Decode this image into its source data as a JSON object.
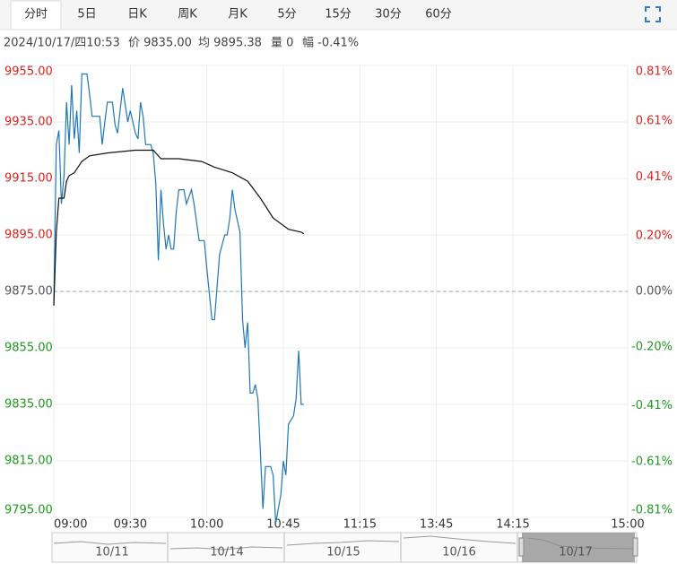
{
  "tabs": [
    "分时",
    "5日",
    "日K",
    "周K",
    "月K",
    "5分",
    "15分",
    "30分",
    "60分"
  ],
  "selected_tab": 0,
  "info": [
    "2024/10/17/四10:53",
    "价 9835.00",
    "均 9895.38",
    "量 0",
    "幅 -0.41%"
  ],
  "chart_data": {
    "type": "line",
    "ylim": [
      9795,
      9955
    ],
    "yticks": [
      {
        "value": 9955,
        "label": "9955.00"
      },
      {
        "value": 9935,
        "label": "9935.00"
      },
      {
        "value": 9915,
        "label": "9915.00"
      },
      {
        "value": 9895,
        "label": "9895.00"
      },
      {
        "value": 9875,
        "label": "9875.00"
      },
      {
        "value": 9855,
        "label": "9855.00"
      },
      {
        "value": 9835,
        "label": "9835.00"
      },
      {
        "value": 9815,
        "label": "9815.00"
      },
      {
        "value": 9795,
        "label": "9795.00"
      }
    ],
    "y2lim": [
      -0.81,
      0.81
    ],
    "y2ticks": [
      {
        "value": 0.81,
        "label": "0.81%"
      },
      {
        "value": 0.61,
        "label": "0.61%"
      },
      {
        "value": 0.41,
        "label": "0.41%"
      },
      {
        "value": 0.2,
        "label": "0.20%"
      },
      {
        "value": 0,
        "label": "0.00%"
      },
      {
        "value": -0.2,
        "label": "-0.20%"
      },
      {
        "value": -0.41,
        "label": "-0.41%"
      },
      {
        "value": -0.61,
        "label": "-0.61%"
      },
      {
        "value": -0.81,
        "label": "-0.81%"
      }
    ],
    "xlim": [
      0,
      225
    ],
    "xticks": [
      {
        "value": 0,
        "label": "09:00"
      },
      {
        "value": 30,
        "label": "09:30"
      },
      {
        "value": 60,
        "label": "10:00"
      },
      {
        "value": 90,
        "label": "10:45"
      },
      {
        "value": 120,
        "label": "11:15"
      },
      {
        "value": 150,
        "label": "13:45"
      },
      {
        "value": 180,
        "label": "14:15"
      },
      {
        "value": 225,
        "label": "15:00"
      }
    ],
    "base": 9875,
    "up_color": "#e0201c",
    "down_color": "#1e9a1e",
    "flat_color": "#555555",
    "grid": true,
    "series": [
      {
        "color": "#1f78b4",
        "x": [
          "09:00",
          "09:01",
          "09:02",
          "09:03",
          "09:04",
          "09:05",
          "09:06",
          "09:07",
          "09:08",
          "09:09",
          "09:10",
          "09:11",
          "09:13",
          "09:14",
          "09:15",
          "09:18",
          "09:19",
          "09:20",
          "09:21",
          "09:23",
          "09:24",
          "09:25",
          "09:27",
          "09:29",
          "09:30",
          "09:32",
          "09:33",
          "09:34",
          "09:35",
          "09:36",
          "09:38",
          "09:39",
          "09:40",
          "09:41",
          "09:42",
          "09:43",
          "09:44",
          "09:45",
          "09:46",
          "09:47",
          "09:48",
          "09:49",
          "09:51",
          "09:52",
          "09:54",
          "09:55",
          "09:57",
          "09:59",
          "10:00",
          "10:02",
          "10:03",
          "10:05",
          "10:07",
          "10:08",
          "10:09",
          "10:10",
          "10:11",
          "10:13",
          "10:14",
          "10:30",
          "10:31",
          "10:32",
          "10:33",
          "10:34",
          "10:35",
          "10:36",
          "10:37",
          "10:38",
          "10:40",
          "10:41",
          "10:42",
          "10:44",
          "10:45",
          "10:46",
          "10:47",
          "10:49",
          "10:50",
          "10:51",
          "10:52",
          "10:53"
        ],
        "values": [
          9870,
          9927,
          9932,
          9906,
          9916,
          9942,
          9927,
          9948,
          9929,
          9939,
          9924,
          9952,
          9952,
          9945,
          9937,
          9937,
          9927,
          9935,
          9942,
          9942,
          9934,
          9931,
          9947,
          9935,
          9939,
          9931,
          9929,
          9942,
          9937,
          9927,
          9927,
          9924,
          9913,
          9886,
          9911,
          9899,
          9890,
          9895,
          9890,
          9890,
          9903,
          9911,
          9911,
          9906,
          9911,
          9906,
          9893,
          9893,
          9883,
          9865,
          9865,
          9888,
          9895,
          9895,
          9901,
          9911,
          9904,
          9896,
          9865,
          9855,
          9864,
          9839,
          9839,
          9842,
          9837,
          9818,
          9798,
          9813,
          9813,
          9810,
          9793,
          9803,
          9815,
          9810,
          9828,
          9831,
          9837,
          9854,
          9835,
          9835
        ]
      },
      {
        "color": "#111111",
        "x": [
          "09:00",
          "09:01",
          "09:02",
          "09:04",
          "09:05",
          "09:06",
          "09:08",
          "09:11",
          "09:14",
          "09:21",
          "09:32",
          "09:39",
          "09:42",
          "09:49",
          "09:58",
          "10:03",
          "10:10",
          "10:31",
          "10:36",
          "10:41",
          "10:47",
          "10:52",
          "10:53"
        ],
        "values": [
          9870,
          9896,
          9908,
          9908,
          9914,
          9916,
          9917,
          9921,
          9923,
          9924,
          9925,
          9925,
          9922,
          9922,
          9921,
          9919,
          9917,
          9914,
          9908,
          9901,
          9897,
          9896,
          9895.38
        ]
      }
    ]
  },
  "navigator": [
    "10/11",
    "10/14",
    "10/15",
    "10/16",
    "10/17"
  ]
}
